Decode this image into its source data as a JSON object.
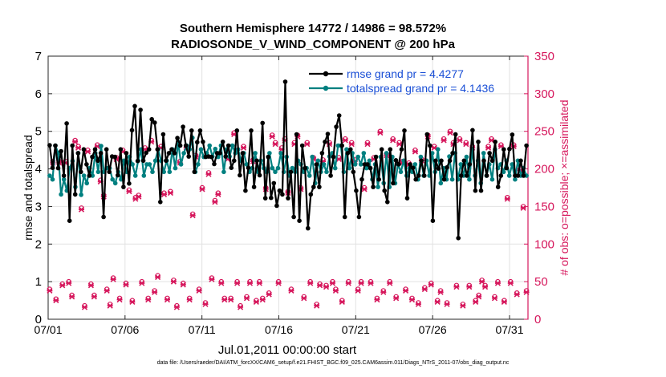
{
  "chart_data": {
    "type": "line",
    "title": "Southern Hemisphere 14772 / 14986 = 98.572%",
    "subtitle": "RADIOSONDE_V_WIND_COMPONENT @ 200 hPa",
    "xlabel": "Jul.01,2011 00:00:00 start",
    "ylabel_left": "rmse and totalspread",
    "ylabel_right": "# of obs: o=possible; ×=assimilated",
    "xlim": [
      0,
      31.2
    ],
    "ylim_left": [
      0,
      7
    ],
    "ylim_right": [
      0,
      350
    ],
    "x_tick_values": [
      0,
      5,
      10,
      15,
      20,
      25,
      30
    ],
    "x_tick_labels": [
      "07/01",
      "07/06",
      "07/11",
      "07/16",
      "07/21",
      "07/26",
      "07/31"
    ],
    "y_left_ticks": [
      0,
      1,
      2,
      3,
      4,
      5,
      6,
      7
    ],
    "y_right_ticks": [
      0,
      50,
      100,
      150,
      200,
      250,
      300,
      350
    ],
    "legend": [
      "rmse grand pr = 4.4277",
      "totalspread grand pr = 4.1436"
    ],
    "series": [
      {
        "name": "rmse",
        "color": "#000000",
        "values": [
          4.63,
          4.03,
          4.62,
          4.02,
          4.47,
          3.82,
          5.21,
          2.62,
          4.62,
          3.32,
          4.42,
          3.92,
          4.52,
          4.12,
          3.82,
          4.32,
          4.52,
          4.22,
          4.42,
          2.72,
          4.52,
          3.92,
          4.33,
          4.32,
          3.83,
          4.52,
          3.52,
          4.42,
          3.61,
          5.03,
          5.67,
          4.21,
          5.57,
          4.22,
          4.43,
          4.52,
          5.32,
          5.23,
          4.52,
          3.12,
          4.92,
          4.22,
          4.42,
          4.52,
          4.42,
          4.82,
          4.62,
          5.12,
          4.62,
          4.33,
          5.02,
          3.92,
          4.71,
          5.02,
          4.72,
          4.32,
          4.33,
          4.32,
          4.13,
          4.42,
          4.42,
          4.72,
          4.33,
          4.62,
          4.03,
          4.22,
          5.02,
          3.83,
          4.42,
          3.42,
          4.03,
          5.02,
          3.52,
          4.22,
          3.83,
          5.22,
          3.22,
          4.32,
          3.23,
          3.62,
          3.02,
          3.42,
          3.32,
          6.32,
          3.22,
          3.92,
          2.72,
          4.92,
          2.62,
          4.62,
          4.02,
          2.42,
          3.32,
          3.52,
          4.12,
          3.52,
          4.42,
          4.72,
          4.93,
          3.82,
          4.32,
          5.12,
          5.42,
          4.62,
          2.72,
          4.42,
          4.52,
          3.92,
          3.42,
          2.72,
          3.72,
          4.12,
          4.12,
          4.02,
          3.52,
          4.32,
          3.72,
          4.52,
          3.42,
          3.12,
          4.52,
          3.62,
          4.23,
          4.12,
          4.52,
          5.02,
          3.22,
          4.12,
          4.03,
          3.72,
          3.82,
          4.22,
          3.82,
          4.92,
          4.62,
          2.62,
          4.22,
          4.01,
          4.22,
          3.72,
          4.04,
          4.22,
          4.42,
          4.92,
          2.16,
          3.82,
          4.22,
          3.82,
          4.12,
          5.03,
          3.42,
          4.72,
          3.42,
          4.22,
          3.82,
          4.42,
          4.22,
          4.72,
          3.52,
          3.82,
          4.52,
          4.02,
          4.53,
          4.91,
          3.82,
          3.82,
          4.22,
          3.82,
          4.62
        ]
      },
      {
        "name": "totalspread",
        "color": "#008080",
        "values": [
          3.82,
          3.72,
          4.62,
          4.42,
          3.32,
          3.72,
          3.42,
          4.02,
          4.21,
          3.52,
          4.42,
          3.31,
          3.82,
          3.62,
          4.02,
          3.82,
          4.42,
          3.92,
          4.61,
          3.92,
          4.02,
          4.02,
          3.72,
          3.62,
          3.92,
          3.72,
          4.22,
          3.92,
          4.32,
          4.12,
          3.82,
          4.22,
          4.52,
          3.82,
          4.12,
          4.12,
          3.92,
          4.22,
          4.52,
          4.22,
          3.92,
          4.22,
          3.92,
          4.52,
          4.02,
          4.72,
          4.12,
          4.42,
          4.62,
          4.52,
          4.83,
          3.92,
          4.12,
          4.52,
          4.32,
          4.42,
          4.62,
          4.33,
          4.53,
          4.32,
          4.62,
          3.92,
          4.52,
          4.33,
          4.62,
          4.42,
          4.52,
          4.22,
          4.42,
          4.12,
          3.92,
          4.02,
          4.42,
          3.92,
          4.22,
          4.02,
          3.92,
          4.42,
          4.02,
          3.92,
          4.02,
          4.42,
          3.92,
          4.32,
          3.82,
          4.02,
          3.92,
          4.22,
          4.12,
          3.92,
          4.02,
          3.82,
          4.32,
          3.62,
          4.22,
          3.92,
          4.12,
          3.92,
          4.33,
          4.42,
          4.02,
          4.62,
          4.62,
          3.92,
          4.52,
          4.02,
          4.42,
          4.12,
          4.32,
          4.12,
          4.42,
          4.02,
          4.22,
          3.72,
          4.12,
          3.52,
          4.32,
          3.62,
          4.42,
          3.52,
          4.32,
          3.62,
          4.12,
          3.92,
          4.22,
          3.82,
          4.02,
          3.92,
          4.12,
          3.72,
          4.32,
          3.82,
          4.22,
          3.82,
          4.42,
          3.92,
          4.52,
          3.62,
          4.02,
          3.72,
          4.33,
          3.72,
          4.42,
          3.72,
          4.12,
          3.82,
          4.32,
          3.72,
          4.52,
          3.82,
          4.22,
          3.62,
          4.42,
          3.82,
          4.12,
          3.72,
          4.52,
          4.02,
          4.12,
          3.92,
          4.22,
          3.82,
          4.12,
          3.72,
          4.22,
          3.82,
          4.02,
          3.82
        ]
      },
      {
        "name": "# obs possible",
        "color": "#d6175c",
        "values": [
          40,
          210,
          27,
          210,
          47,
          210,
          50,
          32,
          238,
          230,
          148,
          18,
          225,
          47,
          32,
          232,
          185,
          165,
          40,
          20,
          55,
          215,
          28,
          225,
          48,
          172,
          25,
          162,
          165,
          50,
          228,
          28,
          238,
          38,
          58,
          230,
          168,
          28,
          170,
          52,
          18,
          210,
          48,
          230,
          28,
          140,
          218,
          40,
          175,
          22,
          195,
          55,
          158,
          168,
          50,
          28,
          215,
          28,
          248,
          50,
          18,
          230,
          30,
          50,
          212,
          25,
          50,
          28,
          175,
          35,
          245,
          235,
          50,
          228,
          240,
          170,
          40,
          235,
          245,
          175,
          30,
          235,
          50,
          215,
          20,
          47,
          212,
          45,
          235,
          50,
          40,
          215,
          25,
          240,
          50,
          235,
          212,
          40,
          50,
          175,
          235,
          50,
          215,
          28,
          250,
          38,
          220,
          50,
          240,
          30,
          235,
          210,
          40,
          208,
          28,
          225,
          22,
          213,
          42,
          245,
          48,
          230,
          25,
          38,
          240,
          22,
          250,
          235,
          45,
          240,
          20,
          235,
          45,
          230,
          25,
          32,
          52,
          45,
          230,
          240,
          30,
          50,
          232,
          25,
          162,
          50,
          232,
          35,
          200,
          150,
          38
        ]
      },
      {
        "name": "# obs assimilated",
        "color": "#d6175c",
        "values": [
          38,
          208,
          25,
          208,
          45,
          208,
          48,
          30,
          236,
          228,
          146,
          16,
          223,
          45,
          30,
          230,
          183,
          163,
          38,
          18,
          53,
          213,
          26,
          223,
          46,
          170,
          23,
          160,
          163,
          48,
          226,
          26,
          236,
          36,
          56,
          228,
          166,
          26,
          168,
          50,
          16,
          208,
          46,
          228,
          26,
          138,
          216,
          38,
          173,
          20,
          193,
          53,
          156,
          166,
          48,
          26,
          213,
          26,
          246,
          48,
          16,
          228,
          28,
          48,
          210,
          23,
          48,
          26,
          173,
          33,
          243,
          233,
          48,
          226,
          238,
          168,
          38,
          233,
          243,
          173,
          28,
          233,
          48,
          213,
          18,
          45,
          210,
          43,
          233,
          48,
          38,
          213,
          23,
          238,
          48,
          233,
          210,
          38,
          48,
          173,
          233,
          48,
          213,
          26,
          248,
          36,
          218,
          48,
          238,
          28,
          233,
          208,
          38,
          206,
          26,
          223,
          20,
          211,
          40,
          243,
          46,
          228,
          23,
          36,
          238,
          20,
          248,
          233,
          43,
          238,
          18,
          233,
          43,
          228,
          23,
          30,
          50,
          43,
          228,
          238,
          28,
          48,
          230,
          23,
          160,
          48,
          230,
          33,
          198,
          148,
          36
        ]
      }
    ]
  },
  "footer_text": "data file: /Users/raeder/DAI/ATM_forcXX/CAM6_setup/f.e21.FHIST_BGC.f09_025.CAM6assim.011/Diags_NTrS_2011-07/obs_diag_output.nc",
  "colors": {
    "rmse": "#000000",
    "spread": "#008080",
    "obs": "#d6175c",
    "legend_text": "#1a4fd6"
  }
}
